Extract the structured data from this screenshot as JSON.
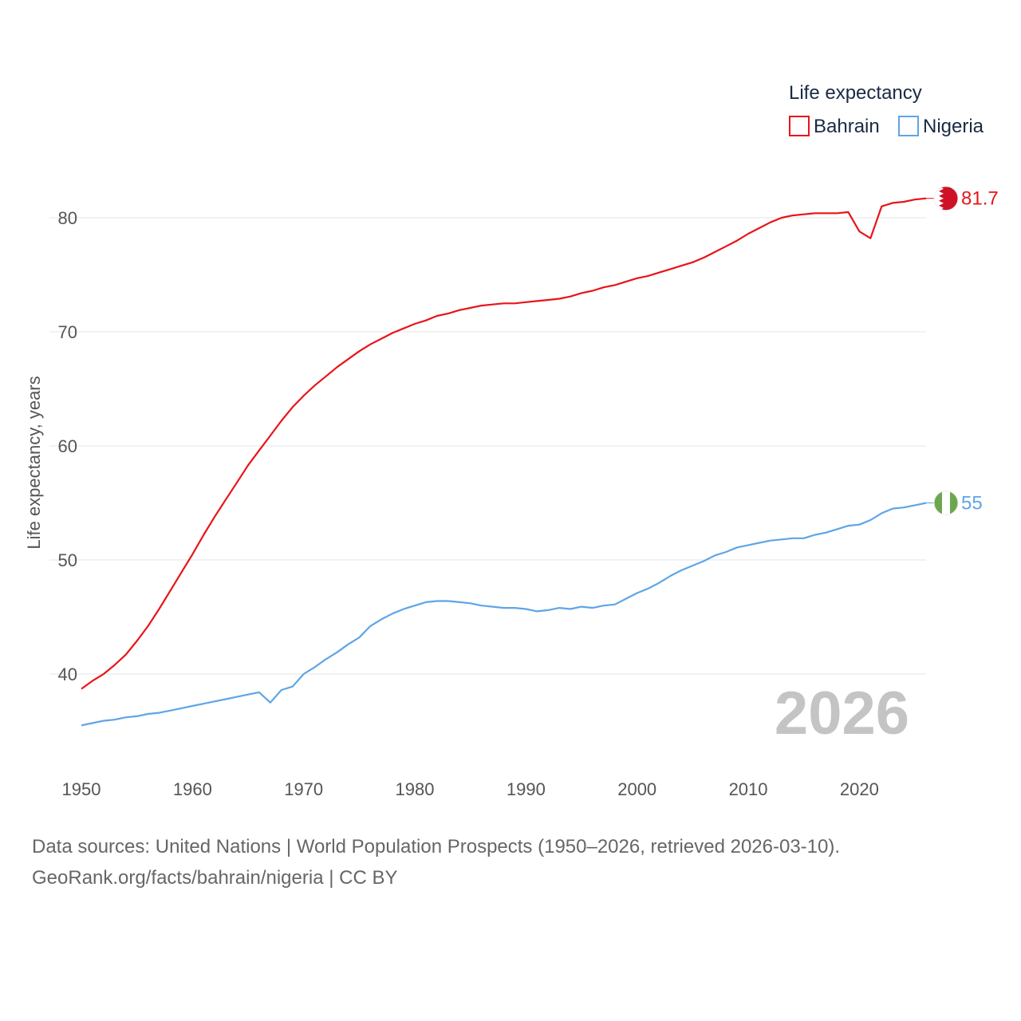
{
  "chart_data": {
    "type": "line",
    "title": "Life expectancy",
    "ylabel": "Life expectancy, years",
    "xlabel": "",
    "xlim": [
      1950,
      2026
    ],
    "ylim": [
      34,
      88
    ],
    "x_ticks": [
      1950,
      1960,
      1970,
      1980,
      1990,
      2000,
      2010,
      2020
    ],
    "y_ticks": [
      40,
      50,
      60,
      70,
      80
    ],
    "grid": true,
    "legend_position": "top-right",
    "current_year": "2026",
    "x": [
      1950,
      1951,
      1952,
      1953,
      1954,
      1955,
      1956,
      1957,
      1958,
      1959,
      1960,
      1961,
      1962,
      1963,
      1964,
      1965,
      1966,
      1967,
      1968,
      1969,
      1970,
      1971,
      1972,
      1973,
      1974,
      1975,
      1976,
      1977,
      1978,
      1979,
      1980,
      1981,
      1982,
      1983,
      1984,
      1985,
      1986,
      1987,
      1988,
      1989,
      1990,
      1991,
      1992,
      1993,
      1994,
      1995,
      1996,
      1997,
      1998,
      1999,
      2000,
      2001,
      2002,
      2003,
      2004,
      2005,
      2006,
      2007,
      2008,
      2009,
      2010,
      2011,
      2012,
      2013,
      2014,
      2015,
      2016,
      2017,
      2018,
      2019,
      2020,
      2021,
      2022,
      2023,
      2024,
      2025,
      2026
    ],
    "series": [
      {
        "name": "Bahrain",
        "color": "#e8141a",
        "end_label": "81.7",
        "flag": "bahrain-flag",
        "values": [
          38.7,
          39.4,
          40.0,
          40.8,
          41.7,
          42.9,
          44.2,
          45.7,
          47.3,
          48.9,
          50.5,
          52.2,
          53.8,
          55.3,
          56.8,
          58.3,
          59.6,
          60.9,
          62.2,
          63.4,
          64.4,
          65.3,
          66.1,
          66.9,
          67.6,
          68.3,
          68.9,
          69.4,
          69.9,
          70.3,
          70.7,
          71.0,
          71.4,
          71.6,
          71.9,
          72.1,
          72.3,
          72.4,
          72.5,
          72.5,
          72.6,
          72.7,
          72.8,
          72.9,
          73.1,
          73.4,
          73.6,
          73.9,
          74.1,
          74.4,
          74.7,
          74.9,
          75.2,
          75.5,
          75.8,
          76.1,
          76.5,
          77.0,
          77.5,
          78.0,
          78.6,
          79.1,
          79.6,
          80.0,
          80.2,
          80.3,
          80.4,
          80.4,
          80.4,
          80.5,
          78.8,
          78.2,
          81.0,
          81.3,
          81.4,
          81.6,
          81.7
        ]
      },
      {
        "name": "Nigeria",
        "color": "#5fa5e6",
        "end_label": "55",
        "flag": "nigeria-flag",
        "values": [
          35.5,
          35.7,
          35.9,
          36.0,
          36.2,
          36.3,
          36.5,
          36.6,
          36.8,
          37.0,
          37.2,
          37.4,
          37.6,
          37.8,
          38.0,
          38.2,
          38.4,
          37.5,
          38.6,
          38.9,
          40.0,
          40.6,
          41.3,
          41.9,
          42.6,
          43.2,
          44.2,
          44.8,
          45.3,
          45.7,
          46.0,
          46.3,
          46.4,
          46.4,
          46.3,
          46.2,
          46.0,
          45.9,
          45.8,
          45.8,
          45.7,
          45.5,
          45.6,
          45.8,
          45.7,
          45.9,
          45.8,
          46.0,
          46.1,
          46.6,
          47.1,
          47.5,
          48.0,
          48.6,
          49.1,
          49.5,
          49.9,
          50.4,
          50.7,
          51.1,
          51.3,
          51.5,
          51.7,
          51.8,
          51.9,
          51.9,
          52.2,
          52.4,
          52.7,
          53.0,
          53.1,
          53.5,
          54.1,
          54.5,
          54.6,
          54.8,
          55.0
        ]
      }
    ]
  },
  "source": {
    "line1": "Data sources: United Nations | World Population Prospects (1950–2026, retrieved 2026-03-10).",
    "line2": "GeoRank.org/facts/bahrain/nigeria | CC BY"
  }
}
